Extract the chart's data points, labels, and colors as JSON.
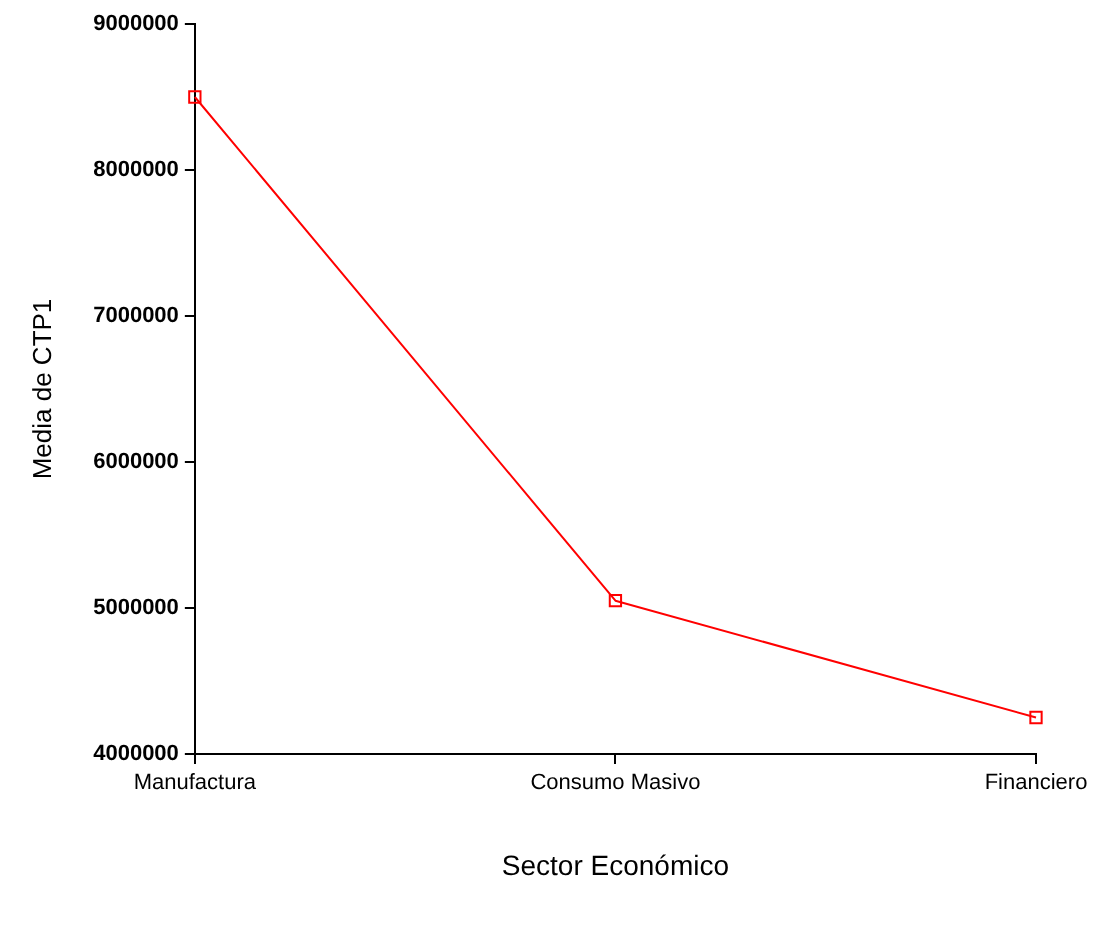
{
  "chart_data": {
    "type": "line",
    "xlabel": "Sector Económico",
    "ylabel": "Media de CTP1",
    "categories": [
      "Manufactura",
      "Consumo Masivo",
      "Financiero"
    ],
    "series": [
      {
        "color": "#ff0000",
        "values": [
          8500000,
          5050000,
          4250000
        ]
      }
    ],
    "ylim": [
      4000000,
      9000000
    ],
    "yticks": [
      4000000,
      5000000,
      6000000,
      7000000,
      8000000,
      9000000
    ],
    "marker": "square",
    "legend": false
  }
}
